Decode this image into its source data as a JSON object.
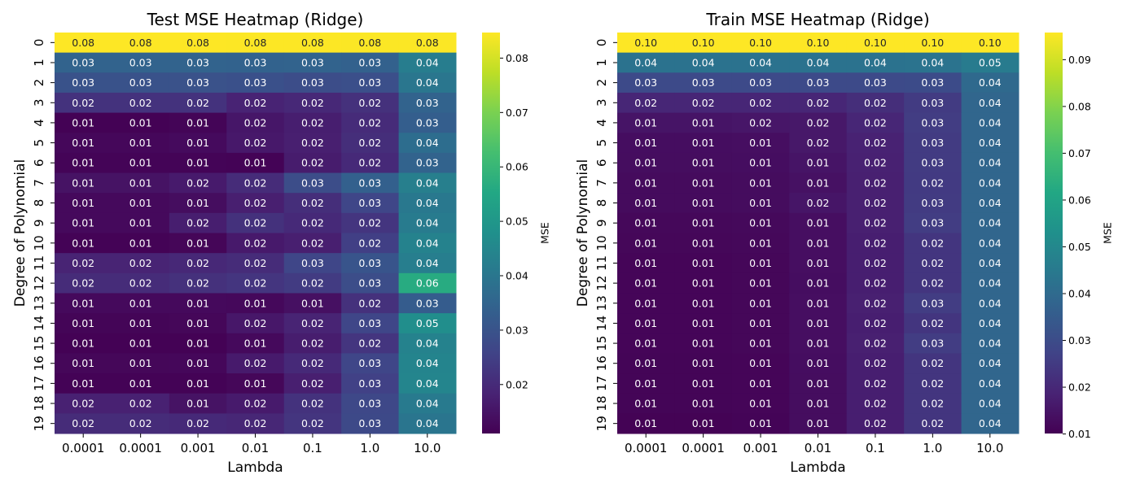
{
  "chart_data": [
    {
      "type": "heatmap",
      "title": "Test MSE Heatmap (Ridge)",
      "xlabel": "Lambda",
      "ylabel": "Degree of Polynomial",
      "x": [
        "0.0001",
        "0.0001",
        "0.001",
        "0.01",
        "0.1",
        "1.0",
        "10.0"
      ],
      "y": [
        "0",
        "1",
        "2",
        "3",
        "4",
        "5",
        "6",
        "7",
        "8",
        "9",
        "10",
        "11",
        "12",
        "13",
        "14",
        "15",
        "16",
        "17",
        "18",
        "19"
      ],
      "values": [
        [
          0.0847,
          0.0847,
          0.0847,
          0.0846,
          0.0846,
          0.0845,
          0.0845
        ],
        [
          0.0345,
          0.0345,
          0.0344,
          0.0343,
          0.0345,
          0.034,
          0.042
        ],
        [
          0.0298,
          0.0298,
          0.0297,
          0.0293,
          0.0285,
          0.029,
          0.0398
        ],
        [
          0.0218,
          0.0218,
          0.0218,
          0.0184,
          0.0195,
          0.0215,
          0.0345
        ],
        [
          0.0112,
          0.0112,
          0.0118,
          0.0155,
          0.0172,
          0.0202,
          0.033
        ],
        [
          0.0124,
          0.0124,
          0.013,
          0.016,
          0.0175,
          0.0208,
          0.0375
        ],
        [
          0.0116,
          0.0116,
          0.0117,
          0.0115,
          0.0168,
          0.0198,
          0.0345
        ],
        [
          0.0148,
          0.0148,
          0.0165,
          0.0205,
          0.0285,
          0.0338,
          0.0425
        ],
        [
          0.0128,
          0.0128,
          0.0135,
          0.0175,
          0.0208,
          0.0265,
          0.0405
        ],
        [
          0.0128,
          0.0128,
          0.0172,
          0.0216,
          0.0198,
          0.0225,
          0.0415
        ],
        [
          0.0115,
          0.0115,
          0.012,
          0.0162,
          0.0175,
          0.0248,
          0.0435
        ],
        [
          0.0185,
          0.0185,
          0.0196,
          0.0205,
          0.0265,
          0.0305,
          0.0422
        ],
        [
          0.0205,
          0.0205,
          0.0215,
          0.0225,
          0.0238,
          0.0285,
          0.0565
        ],
        [
          0.0128,
          0.0128,
          0.0128,
          0.0125,
          0.0142,
          0.0215,
          0.0325
        ],
        [
          0.0118,
          0.0118,
          0.0122,
          0.0158,
          0.0185,
          0.0265,
          0.0472
        ],
        [
          0.0112,
          0.0112,
          0.0112,
          0.0128,
          0.017,
          0.0225,
          0.0435
        ],
        [
          0.0122,
          0.0122,
          0.0124,
          0.0165,
          0.0198,
          0.0265,
          0.0442
        ],
        [
          0.0114,
          0.0114,
          0.0114,
          0.0122,
          0.0175,
          0.0252,
          0.0445
        ],
        [
          0.018,
          0.018,
          0.0148,
          0.0165,
          0.0218,
          0.0272,
          0.0412
        ],
        [
          0.0205,
          0.0205,
          0.0198,
          0.0192,
          0.0225,
          0.0275,
          0.0395
        ]
      ],
      "colormap": "viridis",
      "vmin": 0.011,
      "vmax": 0.0847,
      "colorbar": {
        "label": "MSE",
        "ticks": [
          "0.02",
          "0.03",
          "0.04",
          "0.05",
          "0.06",
          "0.07",
          "0.08"
        ]
      }
    },
    {
      "type": "heatmap",
      "title": "Train MSE Heatmap (Ridge)",
      "xlabel": "Lambda",
      "ylabel": "Degree of Polynomial",
      "x": [
        "0.0001",
        "0.0001",
        "0.001",
        "0.01",
        "0.1",
        "1.0",
        "10.0"
      ],
      "y": [
        "0",
        "1",
        "2",
        "3",
        "4",
        "5",
        "6",
        "7",
        "8",
        "9",
        "10",
        "11",
        "12",
        "13",
        "14",
        "15",
        "16",
        "17",
        "18",
        "19"
      ],
      "values": [
        [
          0.0958,
          0.0958,
          0.0958,
          0.0958,
          0.0958,
          0.0958,
          0.0958
        ],
        [
          0.0425,
          0.0425,
          0.0425,
          0.0425,
          0.0425,
          0.0428,
          0.0455
        ],
        [
          0.0295,
          0.0295,
          0.0295,
          0.0295,
          0.0295,
          0.0298,
          0.0395
        ],
        [
          0.0195,
          0.0195,
          0.0195,
          0.0195,
          0.0215,
          0.0252,
          0.0385
        ],
        [
          0.0148,
          0.0148,
          0.0155,
          0.0158,
          0.0195,
          0.0255,
          0.0385
        ],
        [
          0.0132,
          0.0132,
          0.0135,
          0.0158,
          0.0185,
          0.0252,
          0.0385
        ],
        [
          0.013,
          0.013,
          0.0132,
          0.015,
          0.0182,
          0.025,
          0.0385
        ],
        [
          0.0125,
          0.0125,
          0.0128,
          0.0142,
          0.0178,
          0.0248,
          0.0385
        ],
        [
          0.0125,
          0.0125,
          0.0128,
          0.0152,
          0.0178,
          0.0252,
          0.0385
        ],
        [
          0.0118,
          0.0118,
          0.012,
          0.0135,
          0.0178,
          0.0255,
          0.0385
        ],
        [
          0.0115,
          0.0115,
          0.0118,
          0.0135,
          0.0175,
          0.0235,
          0.0385
        ],
        [
          0.0112,
          0.0112,
          0.0115,
          0.0135,
          0.0175,
          0.0235,
          0.0385
        ],
        [
          0.0112,
          0.0112,
          0.0115,
          0.0132,
          0.0175,
          0.0235,
          0.0385
        ],
        [
          0.0112,
          0.0112,
          0.0115,
          0.0135,
          0.0178,
          0.0255,
          0.0385
        ],
        [
          0.0112,
          0.0112,
          0.0115,
          0.0135,
          0.0175,
          0.0235,
          0.0385
        ],
        [
          0.0112,
          0.0112,
          0.0115,
          0.0135,
          0.0178,
          0.0255,
          0.0385
        ],
        [
          0.011,
          0.011,
          0.0112,
          0.0132,
          0.0175,
          0.0235,
          0.0385
        ],
        [
          0.011,
          0.011,
          0.0112,
          0.013,
          0.0175,
          0.0235,
          0.0385
        ],
        [
          0.011,
          0.011,
          0.0112,
          0.013,
          0.0175,
          0.0235,
          0.0385
        ],
        [
          0.0105,
          0.0105,
          0.0108,
          0.013,
          0.0175,
          0.0235,
          0.0385
        ]
      ],
      "colormap": "viridis",
      "vmin": 0.0101,
      "vmax": 0.0958,
      "colorbar": {
        "label": "MSE",
        "ticks": [
          "0.01",
          "0.02",
          "0.03",
          "0.04",
          "0.05",
          "0.06",
          "0.07",
          "0.08",
          "0.09"
        ]
      }
    }
  ]
}
